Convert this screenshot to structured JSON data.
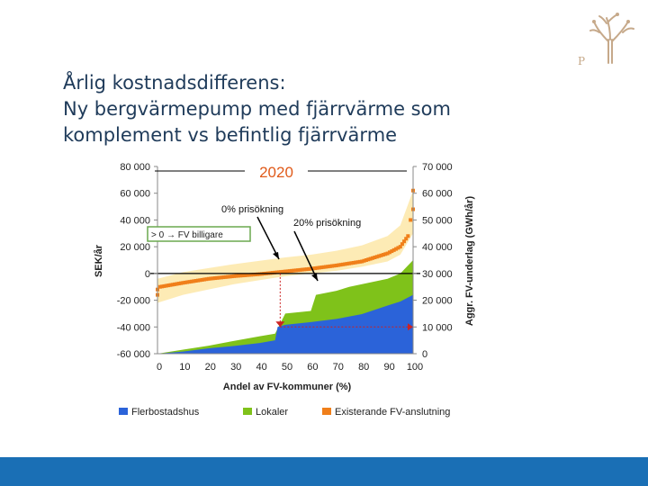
{
  "slide": {
    "title_lines": [
      "Årlig kostnadsdifferens:",
      "Ny bergvärmepump med fjärrvärme som",
      "komplement vs befintlig fjärrvärme"
    ]
  },
  "colors": {
    "title": "#1f3b5a",
    "flerbostadshus": "#2b63d9",
    "lokaler": "#7fc21a",
    "existerande": "#f07f1a",
    "band": "#fde8a8",
    "bottom_bar": "#1a6fb5"
  },
  "icons": {
    "logo": "tree-logo-icon"
  },
  "chart_data": {
    "type": "area",
    "year_label": "2020",
    "annotations": {
      "p0": "0% prisökning",
      "p20": "20% prisökning",
      "cheaper": "> 0  →  FV billigare"
    },
    "xlabel": "Andel av FV-kommuner (%)",
    "ylabel_left": "SEK/år",
    "ylabel_right": "Aggr. FV-underlag (GWh/år)",
    "x_ticks": [
      "0",
      "10",
      "20",
      "30",
      "40",
      "50",
      "60",
      "70",
      "80",
      "90",
      "100"
    ],
    "y_left_ticks": [
      "80 000",
      "60 000",
      "40 000",
      "20 000",
      "0",
      "-20 000",
      "-40 000",
      "-60 000"
    ],
    "y_right_ticks": [
      "70 000",
      "60 000",
      "50 000",
      "40 000",
      "30 000",
      "20 000",
      "10 000",
      "0"
    ],
    "xlim": [
      0,
      100
    ],
    "ylim_left": [
      -60000,
      80000
    ],
    "ylim_right": [
      0,
      70000
    ],
    "legend": [
      "Flerbostadshus",
      "Lokaler",
      "Existerande FV-anslutning"
    ],
    "legend_position": "bottom",
    "series": [
      {
        "name": "Flerbostadshus",
        "axis": "right",
        "x": [
          0,
          10,
          20,
          30,
          40,
          46,
          47,
          50,
          60,
          70,
          80,
          90,
          95,
          100
        ],
        "y": [
          0,
          800,
          2000,
          2900,
          4000,
          5000,
          10000,
          10800,
          11800,
          13000,
          14800,
          18000,
          19500,
          22000
        ]
      },
      {
        "name": "Lokaler",
        "axis": "right",
        "x": [
          0,
          10,
          20,
          30,
          40,
          46,
          50,
          60,
          62,
          70,
          75,
          80,
          90,
          95,
          100
        ],
        "y": [
          0,
          1500,
          3000,
          4800,
          6500,
          7500,
          15000,
          16000,
          22000,
          23500,
          25000,
          26000,
          28000,
          30000,
          35000
        ]
      },
      {
        "name": "Existerande FV-anslutning",
        "axis": "left",
        "x": [
          0,
          1,
          10,
          20,
          30,
          40,
          50,
          60,
          70,
          80,
          90,
          95,
          98,
          99,
          100
        ],
        "y": [
          -12000,
          -10000,
          -7000,
          -4000,
          -2000,
          -500,
          1500,
          3500,
          6000,
          9000,
          15000,
          20000,
          28000,
          40000,
          62000
        ]
      },
      {
        "name": "",
        "type": "band",
        "axis": "left",
        "x": [
          0,
          10,
          20,
          30,
          40,
          50,
          60,
          70,
          80,
          90,
          95,
          100
        ],
        "low": [
          -22000,
          -16000,
          -12000,
          -8000,
          -5000,
          -2000,
          0,
          2000,
          5000,
          9000,
          14000,
          30000
        ],
        "high": [
          -4000,
          1000,
          4000,
          7000,
          9500,
          12000,
          14000,
          17000,
          21000,
          28000,
          36000,
          62000
        ]
      }
    ],
    "markers": [
      {
        "label": "0% prisökning",
        "x": 48,
        "y_left": 0
      },
      {
        "label": "20% prisökning",
        "x": 62,
        "y_left": 0
      }
    ]
  }
}
